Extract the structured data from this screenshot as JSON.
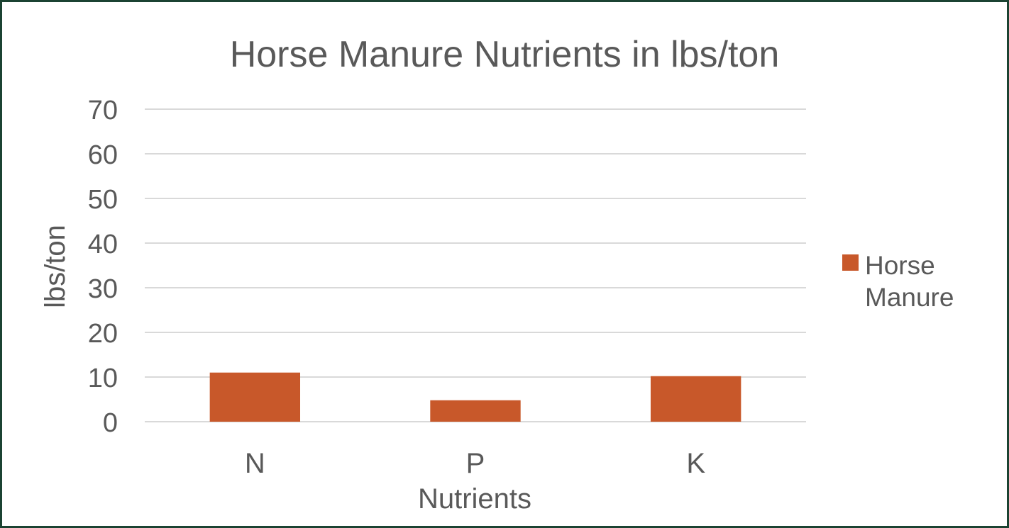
{
  "chart_data": {
    "type": "bar",
    "title": "Horse Manure Nutrients in lbs/ton",
    "xlabel": "Nutrients",
    "ylabel": "lbs/ton",
    "categories": [
      "N",
      "P",
      "K"
    ],
    "series": [
      {
        "name": "Horse Manure",
        "values": [
          11,
          4.8,
          10.2
        ],
        "color": "#c8582a"
      }
    ],
    "ylim": [
      0,
      70
    ],
    "yticks": [
      "0",
      "10",
      "20",
      "30",
      "40",
      "50",
      "60",
      "70"
    ],
    "grid": true,
    "legend_position": "right",
    "legend_lines": [
      "Horse",
      "Manure"
    ]
  }
}
